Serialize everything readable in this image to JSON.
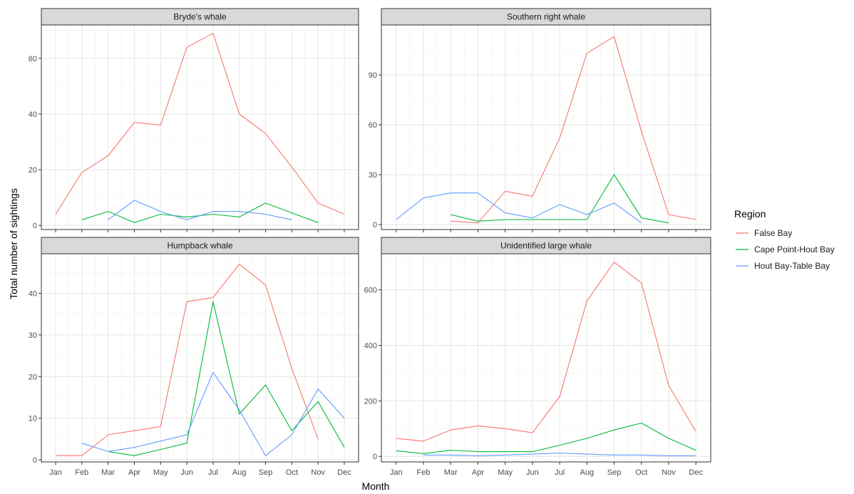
{
  "chart_data": {
    "type": "line",
    "xlabel": "Month",
    "ylabel": "Total number of sightings",
    "categories": [
      "Jan",
      "Feb",
      "Mar",
      "Apr",
      "May",
      "Jun",
      "Jul",
      "Aug",
      "Sep",
      "Oct",
      "Nov",
      "Dec"
    ],
    "legend": {
      "title": "Region",
      "placement": "right",
      "entries": [
        {
          "name": "False Bay",
          "color": "#F8766D"
        },
        {
          "name": "Cape Point-Hout Bay",
          "color": "#00BA38"
        },
        {
          "name": "Hout Bay-Table Bay",
          "color": "#619CFF"
        }
      ]
    },
    "grid": true,
    "facets": [
      {
        "title": "Bryde's whale",
        "ylim": [
          -1.5,
          72
        ],
        "yticks": [
          0,
          20,
          40,
          60
        ],
        "series": [
          {
            "name": "False Bay",
            "values": [
              4,
              19,
              25,
              37,
              36,
              64,
              69,
              40,
              33,
              21,
              8,
              4
            ]
          },
          {
            "name": "Cape Point-Hout Bay",
            "values": [
              null,
              2,
              5,
              1,
              4,
              3,
              4,
              3,
              8,
              4.5,
              1,
              null
            ]
          },
          {
            "name": "Hout Bay-Table Bay",
            "values": [
              null,
              null,
              2,
              9,
              5,
              2,
              5,
              5,
              4,
              2,
              null,
              null
            ]
          }
        ]
      },
      {
        "title": "Southern right whale",
        "ylim": [
          -3,
          120
        ],
        "yticks": [
          0,
          30,
          60,
          90
        ],
        "series": [
          {
            "name": "False Bay",
            "values": [
              null,
              null,
              2,
              1,
              20,
              17,
              52,
              103,
              113,
              56,
              6,
              3
            ]
          },
          {
            "name": "Cape Point-Hout Bay",
            "values": [
              null,
              null,
              6,
              2,
              3,
              3,
              3,
              3,
              30,
              4,
              1,
              null
            ]
          },
          {
            "name": "Hout Bay-Table Bay",
            "values": [
              3,
              16,
              19,
              19,
              7,
              4,
              12,
              6,
              13,
              1,
              null,
              null
            ]
          }
        ]
      },
      {
        "title": "Humpback whale",
        "ylim": [
          -0.5,
          49.5
        ],
        "yticks": [
          0,
          10,
          20,
          30,
          40
        ],
        "series": [
          {
            "name": "False Bay",
            "values": [
              1,
              1,
              6,
              7,
              8,
              38,
              39,
              47,
              42,
              22,
              5,
              null
            ]
          },
          {
            "name": "Cape Point-Hout Bay",
            "values": [
              1,
              null,
              2,
              1,
              2.5,
              4,
              38,
              11,
              18,
              7,
              14,
              3
            ]
          },
          {
            "name": "Hout Bay-Table Bay",
            "values": [
              null,
              4,
              2,
              3,
              4.5,
              6,
              21,
              12,
              1,
              6,
              17,
              10
            ]
          }
        ]
      },
      {
        "title": "Unidentified large whale",
        "ylim": [
          -20,
          730
        ],
        "yticks": [
          0,
          200,
          400,
          600
        ],
        "series": [
          {
            "name": "False Bay",
            "values": [
              65,
              55,
              95,
              110,
              100,
              85,
              215,
              560,
              700,
              625,
              255,
              90
            ]
          },
          {
            "name": "Cape Point-Hout Bay",
            "values": [
              20,
              10,
              22,
              17,
              17,
              17,
              40,
              65,
              95,
              120,
              65,
              22
            ]
          },
          {
            "name": "Hout Bay-Table Bay",
            "values": [
              null,
              5,
              5,
              2,
              5,
              8,
              12,
              8,
              5,
              5,
              2,
              2
            ]
          }
        ]
      }
    ]
  }
}
